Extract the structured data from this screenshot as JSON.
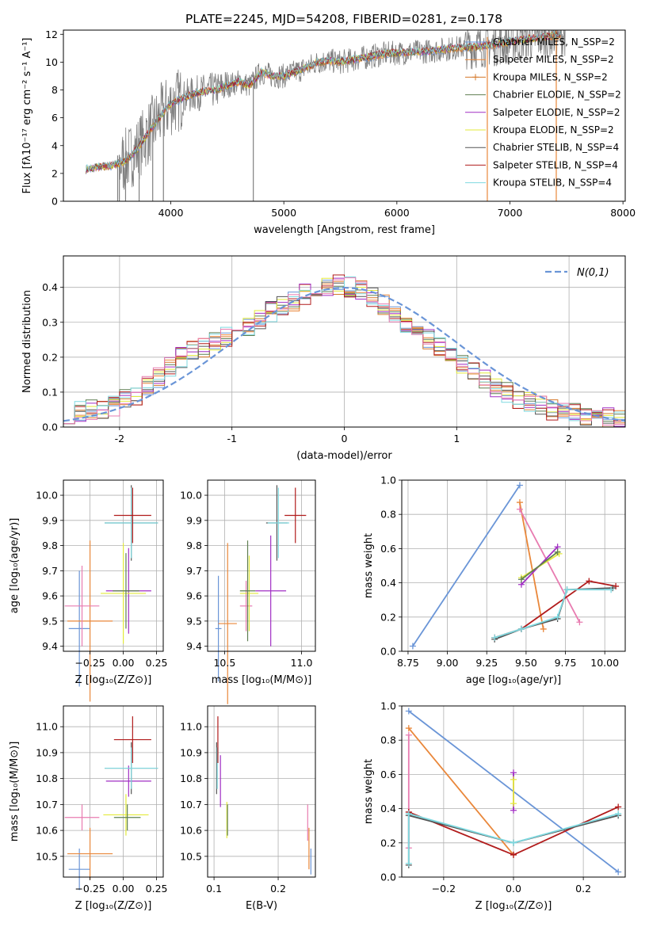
{
  "figure": {
    "title": "PLATE=2245, MJD=54208, FIBERID=0281, z=0.178"
  },
  "colors": {
    "chabrier_miles": "#6a95d7",
    "salpeter_miles": "#e9873a",
    "kroupa_miles": "#d5782a",
    "chabrier_elodie": "#5f7f52",
    "salpeter_elodie": "#a12fc4",
    "kroupa_elodie": "#e3ea3a",
    "chabrier_stelib": "#555555",
    "salpeter_stelib": "#b11b1b",
    "kroupa_stelib": "#7fd9e0",
    "pink": "#e87bb0",
    "gaussian": "#6a95d7",
    "data_spectrum": "#808080"
  },
  "chart_data": [
    {
      "id": "spectrum",
      "type": "line",
      "xlabel": "wavelength [Angstrom, rest frame]",
      "ylabel": "Flux [fλ10⁻¹⁷ erg cm⁻² s⁻¹ A⁻¹]",
      "xlim": [
        3050,
        8020
      ],
      "ylim": [
        0,
        12.3
      ],
      "xticks": [
        4000,
        5000,
        6000,
        7000,
        8000
      ],
      "yticks": [
        0,
        2,
        4,
        6,
        8,
        10,
        12
      ],
      "grid": false,
      "legend_position": "top-right",
      "legend": [
        "Chabrier MILES, N_SSP=2",
        "Salpeter MILES, N_SSP=2",
        "Kroupa MILES, N_SSP=2",
        "Chabrier ELODIE, N_SSP=2",
        "Salpeter ELODIE, N_SSP=2",
        "Kroupa ELODIE, N_SSP=2",
        "Chabrier STELIB, N_SSP=4",
        "Salpeter STELIB, N_SSP=4",
        "Kroupa STELIB, N_SSP=4"
      ],
      "continuum": {
        "x": [
          3250,
          3400,
          3500,
          3600,
          3700,
          3800,
          3900,
          4000,
          4100,
          4200,
          4300,
          4400,
          4500,
          4600,
          4700,
          4800,
          4900,
          5000,
          5100,
          5200,
          5300,
          5400,
          5500,
          5700,
          5900,
          6100,
          6300,
          6500,
          6700,
          6900,
          7100,
          7300,
          7500
        ],
        "y": [
          2.3,
          2.5,
          2.6,
          2.9,
          3.7,
          4.9,
          6.0,
          7.0,
          7.4,
          7.7,
          7.9,
          8.0,
          8.3,
          8.6,
          8.3,
          9.3,
          9.0,
          9.0,
          9.3,
          9.6,
          10.0,
          10.1,
          10.0,
          10.3,
          10.6,
          10.7,
          10.8,
          11.0,
          11.1,
          11.3,
          11.6,
          11.8,
          12.0
        ]
      },
      "data_spike_wavelengths": [
        3530,
        3545,
        3600,
        3720,
        3840,
        3935,
        4730,
        6800,
        7410
      ]
    },
    {
      "id": "residual_hist",
      "type": "line",
      "xlabel": "(data-model)/error",
      "ylabel": "Normed distribution",
      "xlim": [
        -2.5,
        2.5
      ],
      "ylim": [
        0,
        0.49
      ],
      "xticks": [
        -2,
        -1,
        0,
        1,
        2
      ],
      "yticks": [
        0.0,
        0.1,
        0.2,
        0.3,
        0.4
      ],
      "grid": true,
      "legend_position": "top-right",
      "legend": [
        "N(0,1)"
      ],
      "bin_edges_start": -2.5,
      "bin_width": 0.1,
      "histogram": [
        0.04,
        0.045,
        0.05,
        0.055,
        0.06,
        0.08,
        0.09,
        0.12,
        0.14,
        0.17,
        0.2,
        0.22,
        0.23,
        0.25,
        0.26,
        0.28,
        0.29,
        0.31,
        0.33,
        0.35,
        0.36,
        0.38,
        0.39,
        0.4,
        0.41,
        0.4,
        0.39,
        0.37,
        0.35,
        0.33,
        0.3,
        0.28,
        0.25,
        0.23,
        0.2,
        0.18,
        0.16,
        0.14,
        0.11,
        0.1,
        0.08,
        0.07,
        0.06,
        0.05,
        0.045,
        0.04,
        0.035,
        0.03,
        0.025,
        0.02
      ]
    },
    {
      "id": "age_vs_Z",
      "type": "scatter",
      "xlabel": "Z [log₁₀(Z/Z⊙)]",
      "ylabel": "age  [log₁₀(age/yr)]",
      "xlim": [
        -0.45,
        0.3
      ],
      "ylim": [
        9.38,
        10.06
      ],
      "xticks": [
        -0.25,
        0.0,
        0.25
      ],
      "xticklabels": [
        "−0.25",
        "0.00",
        "0.25"
      ],
      "yticks": [
        9.4,
        9.5,
        9.6,
        9.7,
        9.8,
        9.9,
        10.0
      ],
      "grid": true,
      "points": [
        {
          "c": "chabrier_miles",
          "x": -0.33,
          "y": 9.47,
          "xerr": 0.08,
          "yerr": 0.23
        },
        {
          "c": "salpeter_miles",
          "x": -0.25,
          "y": 9.5,
          "xerr": 0.17,
          "yerr": 0.32
        },
        {
          "c": "pink",
          "x": -0.31,
          "y": 9.56,
          "xerr": 0.13,
          "yerr": 0.16
        },
        {
          "c": "salpeter_elodie",
          "x": 0.04,
          "y": 9.62,
          "xerr": 0.17,
          "yerr": 0.17
        },
        {
          "c": "kroupa_elodie",
          "x": 0.0,
          "y": 9.61,
          "xerr": 0.17,
          "yerr": 0.2
        },
        {
          "c": "chabrier_elodie",
          "x": 0.02,
          "y": 9.62,
          "xerr": 0.1,
          "yerr": 0.15
        },
        {
          "c": "chabrier_stelib",
          "x": 0.06,
          "y": 9.89,
          "xerr": 0.2,
          "yerr": 0.15
        },
        {
          "c": "kroupa_stelib",
          "x": 0.06,
          "y": 9.89,
          "xerr": 0.2,
          "yerr": 0.14
        },
        {
          "c": "salpeter_stelib",
          "x": 0.07,
          "y": 9.92,
          "xerr": 0.14,
          "yerr": 0.11
        }
      ]
    },
    {
      "id": "age_vs_mass",
      "type": "scatter",
      "xlabel": "mass [log₁₀(M/M⊙)]",
      "ylabel": "",
      "xlim": [
        10.39,
        11.09
      ],
      "ylim": [
        9.38,
        10.06
      ],
      "xticks": [
        10.5,
        11.0
      ],
      "xticklabels": [
        "10.5",
        "11.0"
      ],
      "yticks": [
        9.4,
        9.5,
        9.6,
        9.7,
        9.8,
        9.9,
        10.0
      ],
      "grid": true,
      "points": [
        {
          "c": "chabrier_miles",
          "x": 10.46,
          "y": 9.47,
          "xerr": 0.02,
          "yerr": 0.21
        },
        {
          "c": "salpeter_miles",
          "x": 10.52,
          "y": 9.49,
          "xerr": 0.06,
          "yerr": 0.32
        },
        {
          "c": "pink",
          "x": 10.64,
          "y": 9.56,
          "xerr": 0.04,
          "yerr": 0.1
        },
        {
          "c": "salpeter_elodie",
          "x": 10.8,
          "y": 9.62,
          "xerr": 0.1,
          "yerr": 0.22
        },
        {
          "c": "kroupa_elodie",
          "x": 10.66,
          "y": 9.61,
          "xerr": 0.06,
          "yerr": 0.15
        },
        {
          "c": "chabrier_elodie",
          "x": 10.65,
          "y": 9.62,
          "xerr": 0.05,
          "yerr": 0.2
        },
        {
          "c": "chabrier_stelib",
          "x": 10.84,
          "y": 9.89,
          "xerr": 0.07,
          "yerr": 0.15
        },
        {
          "c": "kroupa_stelib",
          "x": 10.85,
          "y": 9.89,
          "xerr": 0.07,
          "yerr": 0.14
        },
        {
          "c": "salpeter_stelib",
          "x": 10.96,
          "y": 9.92,
          "xerr": 0.07,
          "yerr": 0.11
        }
      ]
    },
    {
      "id": "weight_vs_age",
      "type": "line",
      "xlabel": "age  [log₁₀(age/yr)]",
      "ylabel": "mass weight",
      "xlim": [
        8.71,
        10.13
      ],
      "ylim": [
        0.0,
        1.0
      ],
      "xticks": [
        8.75,
        9.0,
        9.25,
        9.5,
        9.75,
        10.0
      ],
      "xticklabels": [
        "8.75",
        "9.00",
        "9.25",
        "9.50",
        "9.75",
        "10.00"
      ],
      "yticks": [
        0.0,
        0.2,
        0.4,
        0.6,
        0.8,
        1.0
      ],
      "grid": true,
      "series": [
        {
          "c": "chabrier_miles",
          "x": [
            8.78,
            9.46
          ],
          "y": [
            0.03,
            0.97
          ]
        },
        {
          "c": "salpeter_miles",
          "x": [
            9.46,
            9.61
          ],
          "y": [
            0.87,
            0.13
          ]
        },
        {
          "c": "pink",
          "x": [
            9.46,
            9.84
          ],
          "y": [
            0.83,
            0.17
          ]
        },
        {
          "c": "salpeter_elodie",
          "x": [
            9.47,
            9.7
          ],
          "y": [
            0.39,
            0.61
          ]
        },
        {
          "c": "kroupa_elodie",
          "x": [
            9.47,
            9.71
          ],
          "y": [
            0.43,
            0.57
          ]
        },
        {
          "c": "chabrier_elodie",
          "x": [
            9.47,
            9.7
          ],
          "y": [
            0.42,
            0.58
          ]
        },
        {
          "c": "salpeter_stelib",
          "x": [
            9.3,
            9.47,
            9.9,
            10.07
          ],
          "y": [
            0.08,
            0.13,
            0.41,
            0.38
          ]
        },
        {
          "c": "chabrier_stelib",
          "x": [
            9.3,
            9.47,
            9.7,
            9.76,
            10.05
          ],
          "y": [
            0.07,
            0.13,
            0.19,
            0.36,
            0.37
          ]
        },
        {
          "c": "kroupa_stelib",
          "x": [
            9.3,
            9.47,
            9.7,
            9.76,
            10.04
          ],
          "y": [
            0.08,
            0.13,
            0.2,
            0.36,
            0.36
          ]
        }
      ]
    },
    {
      "id": "mass_vs_Z",
      "type": "scatter",
      "xlabel": "Z [log₁₀(Z/Z⊙)]",
      "ylabel": "mass [log₁₀(M/M⊙)]",
      "xlim": [
        -0.45,
        0.3
      ],
      "ylim": [
        10.42,
        11.08
      ],
      "xticks": [
        -0.25,
        0.0,
        0.25
      ],
      "xticklabels": [
        "−0.25",
        "0.00",
        "0.25"
      ],
      "yticks": [
        10.5,
        10.6,
        10.7,
        10.8,
        10.9,
        11.0
      ],
      "grid": true,
      "points": [
        {
          "c": "chabrier_miles",
          "x": -0.33,
          "y": 10.45,
          "xerr": 0.08,
          "yerr": 0.08
        },
        {
          "c": "salpeter_miles",
          "x": -0.25,
          "y": 10.51,
          "xerr": 0.17,
          "yerr": 0.1
        },
        {
          "c": "pink",
          "x": -0.31,
          "y": 10.65,
          "xerr": 0.13,
          "yerr": 0.05
        },
        {
          "c": "salpeter_elodie",
          "x": 0.04,
          "y": 10.79,
          "xerr": 0.17,
          "yerr": 0.06
        },
        {
          "c": "kroupa_elodie",
          "x": 0.02,
          "y": 10.66,
          "xerr": 0.17,
          "yerr": 0.08
        },
        {
          "c": "chabrier_elodie",
          "x": 0.03,
          "y": 10.65,
          "xerr": 0.1,
          "yerr": 0.05
        },
        {
          "c": "chabrier_stelib",
          "x": 0.06,
          "y": 10.84,
          "xerr": 0.2,
          "yerr": 0.1
        },
        {
          "c": "kroupa_stelib",
          "x": 0.06,
          "y": 10.84,
          "xerr": 0.2,
          "yerr": 0.08
        },
        {
          "c": "salpeter_stelib",
          "x": 0.07,
          "y": 10.95,
          "xerr": 0.14,
          "yerr": 0.09
        }
      ]
    },
    {
      "id": "mass_vs_ebv",
      "type": "scatter",
      "xlabel": "E(B-V)",
      "ylabel": "",
      "xlim": [
        0.09,
        0.258
      ],
      "ylim": [
        10.42,
        11.08
      ],
      "xticks": [
        0.1,
        0.2
      ],
      "xticklabels": [
        "0.1",
        "0.2"
      ],
      "yticks": [
        10.5,
        10.6,
        10.7,
        10.8,
        10.9,
        11.0
      ],
      "grid": true,
      "points": [
        {
          "c": "chabrier_miles",
          "x": 0.251,
          "y": 10.48,
          "xerr": 0,
          "yerr": 0.05
        },
        {
          "c": "salpeter_miles",
          "x": 0.248,
          "y": 10.53,
          "xerr": 0,
          "yerr": 0.08
        },
        {
          "c": "pink",
          "x": 0.246,
          "y": 10.63,
          "xerr": 0,
          "yerr": 0.07
        },
        {
          "c": "salpeter_elodie",
          "x": 0.11,
          "y": 10.79,
          "xerr": 0,
          "yerr": 0.1
        },
        {
          "c": "kroupa_elodie",
          "x": 0.12,
          "y": 10.64,
          "xerr": 0,
          "yerr": 0.07
        },
        {
          "c": "chabrier_elodie",
          "x": 0.121,
          "y": 10.64,
          "xerr": 0,
          "yerr": 0.06
        },
        {
          "c": "chabrier_stelib",
          "x": 0.104,
          "y": 10.84,
          "xerr": 0,
          "yerr": 0.1
        },
        {
          "c": "kroupa_stelib",
          "x": 0.105,
          "y": 10.84,
          "xerr": 0,
          "yerr": 0.08
        },
        {
          "c": "salpeter_stelib",
          "x": 0.106,
          "y": 10.95,
          "xerr": 0,
          "yerr": 0.09
        }
      ]
    },
    {
      "id": "weight_vs_Z",
      "type": "line",
      "xlabel": "Z [log₁₀(Z/Z⊙)]",
      "ylabel": "mass weight",
      "xlim": [
        -0.32,
        0.32
      ],
      "ylim": [
        0.0,
        1.0
      ],
      "xticks": [
        -0.2,
        0.0,
        0.2
      ],
      "xticklabels": [
        "−0.2",
        "0.0",
        "0.2"
      ],
      "yticks": [
        0.0,
        0.2,
        0.4,
        0.6,
        0.8,
        1.0
      ],
      "grid": true,
      "series": [
        {
          "c": "chabrier_miles",
          "x": [
            -0.3,
            0.3
          ],
          "y": [
            0.97,
            0.03
          ]
        },
        {
          "c": "salpeter_miles",
          "x": [
            -0.3,
            0.0
          ],
          "y": [
            0.87,
            0.13
          ]
        },
        {
          "c": "pink",
          "x": [
            -0.3,
            -0.3
          ],
          "y": [
            0.83,
            0.17
          ]
        },
        {
          "c": "salpeter_elodie",
          "x": [
            0.0,
            0.0
          ],
          "y": [
            0.61,
            0.39
          ]
        },
        {
          "c": "kroupa_elodie",
          "x": [
            0.0,
            0.0
          ],
          "y": [
            0.57,
            0.43
          ]
        },
        {
          "c": "salpeter_stelib",
          "x": [
            -0.3,
            0.0,
            0.3
          ],
          "y": [
            0.38,
            0.13,
            0.41
          ]
        },
        {
          "c": "chabrier_stelib",
          "x": [
            -0.3,
            -0.3,
            0.0,
            0.3
          ],
          "y": [
            0.07,
            0.36,
            0.2,
            0.36
          ]
        },
        {
          "c": "kroupa_stelib",
          "x": [
            -0.3,
            -0.3,
            0.0,
            0.3
          ],
          "y": [
            0.08,
            0.37,
            0.2,
            0.37
          ]
        }
      ]
    }
  ]
}
